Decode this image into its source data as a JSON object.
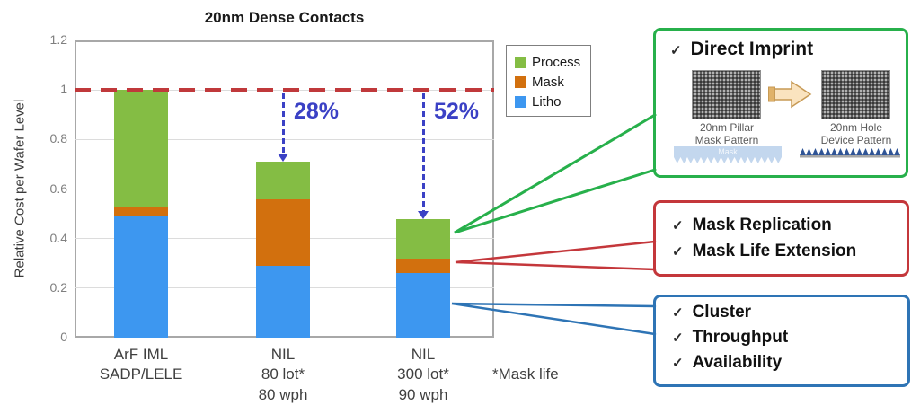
{
  "chart_data": {
    "type": "bar",
    "stacked": true,
    "title": "20nm Dense Contacts",
    "ylabel": "Relative Cost per Wafer Level",
    "ylim": [
      0,
      1.2
    ],
    "yticks": [
      "0",
      "0.2",
      "0.4",
      "0.6",
      "0.8",
      "1",
      "1.2"
    ],
    "grid": true,
    "legend_position": "top-right-outside",
    "categories": [
      "ArF IML\nSADP/LELE",
      "NIL\n80 lot*\n80 wph",
      "NIL\n300 lot*\n90 wph"
    ],
    "series": [
      {
        "name": "Litho",
        "color": "#3d97f0",
        "values": [
          0.49,
          0.29,
          0.26
        ]
      },
      {
        "name": "Mask",
        "color": "#d2700e",
        "values": [
          0.04,
          0.27,
          0.06
        ]
      },
      {
        "name": "Process",
        "color": "#84bd44",
        "values": [
          0.47,
          0.15,
          0.16
        ]
      }
    ],
    "totals": [
      1.0,
      0.71,
      0.48
    ],
    "reference_line": {
      "value": 1,
      "color": "#c0393b"
    },
    "annotations": [
      {
        "category_index": 1,
        "label": "28%",
        "color": "#3b41c5"
      },
      {
        "category_index": 2,
        "label": "52%",
        "color": "#3b41c5"
      }
    ],
    "footnote": "*Mask life"
  },
  "glyphs": {
    "check": "✓"
  },
  "callouts": {
    "direct_imprint": {
      "title": "Direct Imprint",
      "border_color": "#27b04b",
      "left_caption": "20nm Pillar\nMask Pattern",
      "right_caption": "20nm Hole\nDevice Pattern",
      "mask_label": "Mask"
    },
    "mask_box": {
      "border_color": "#c4373b",
      "items": [
        "Mask Replication",
        "Mask Life Extension"
      ]
    },
    "litho_box": {
      "border_color": "#2e74b5",
      "items": [
        "Cluster",
        "Throughput",
        "Availability"
      ]
    }
  }
}
